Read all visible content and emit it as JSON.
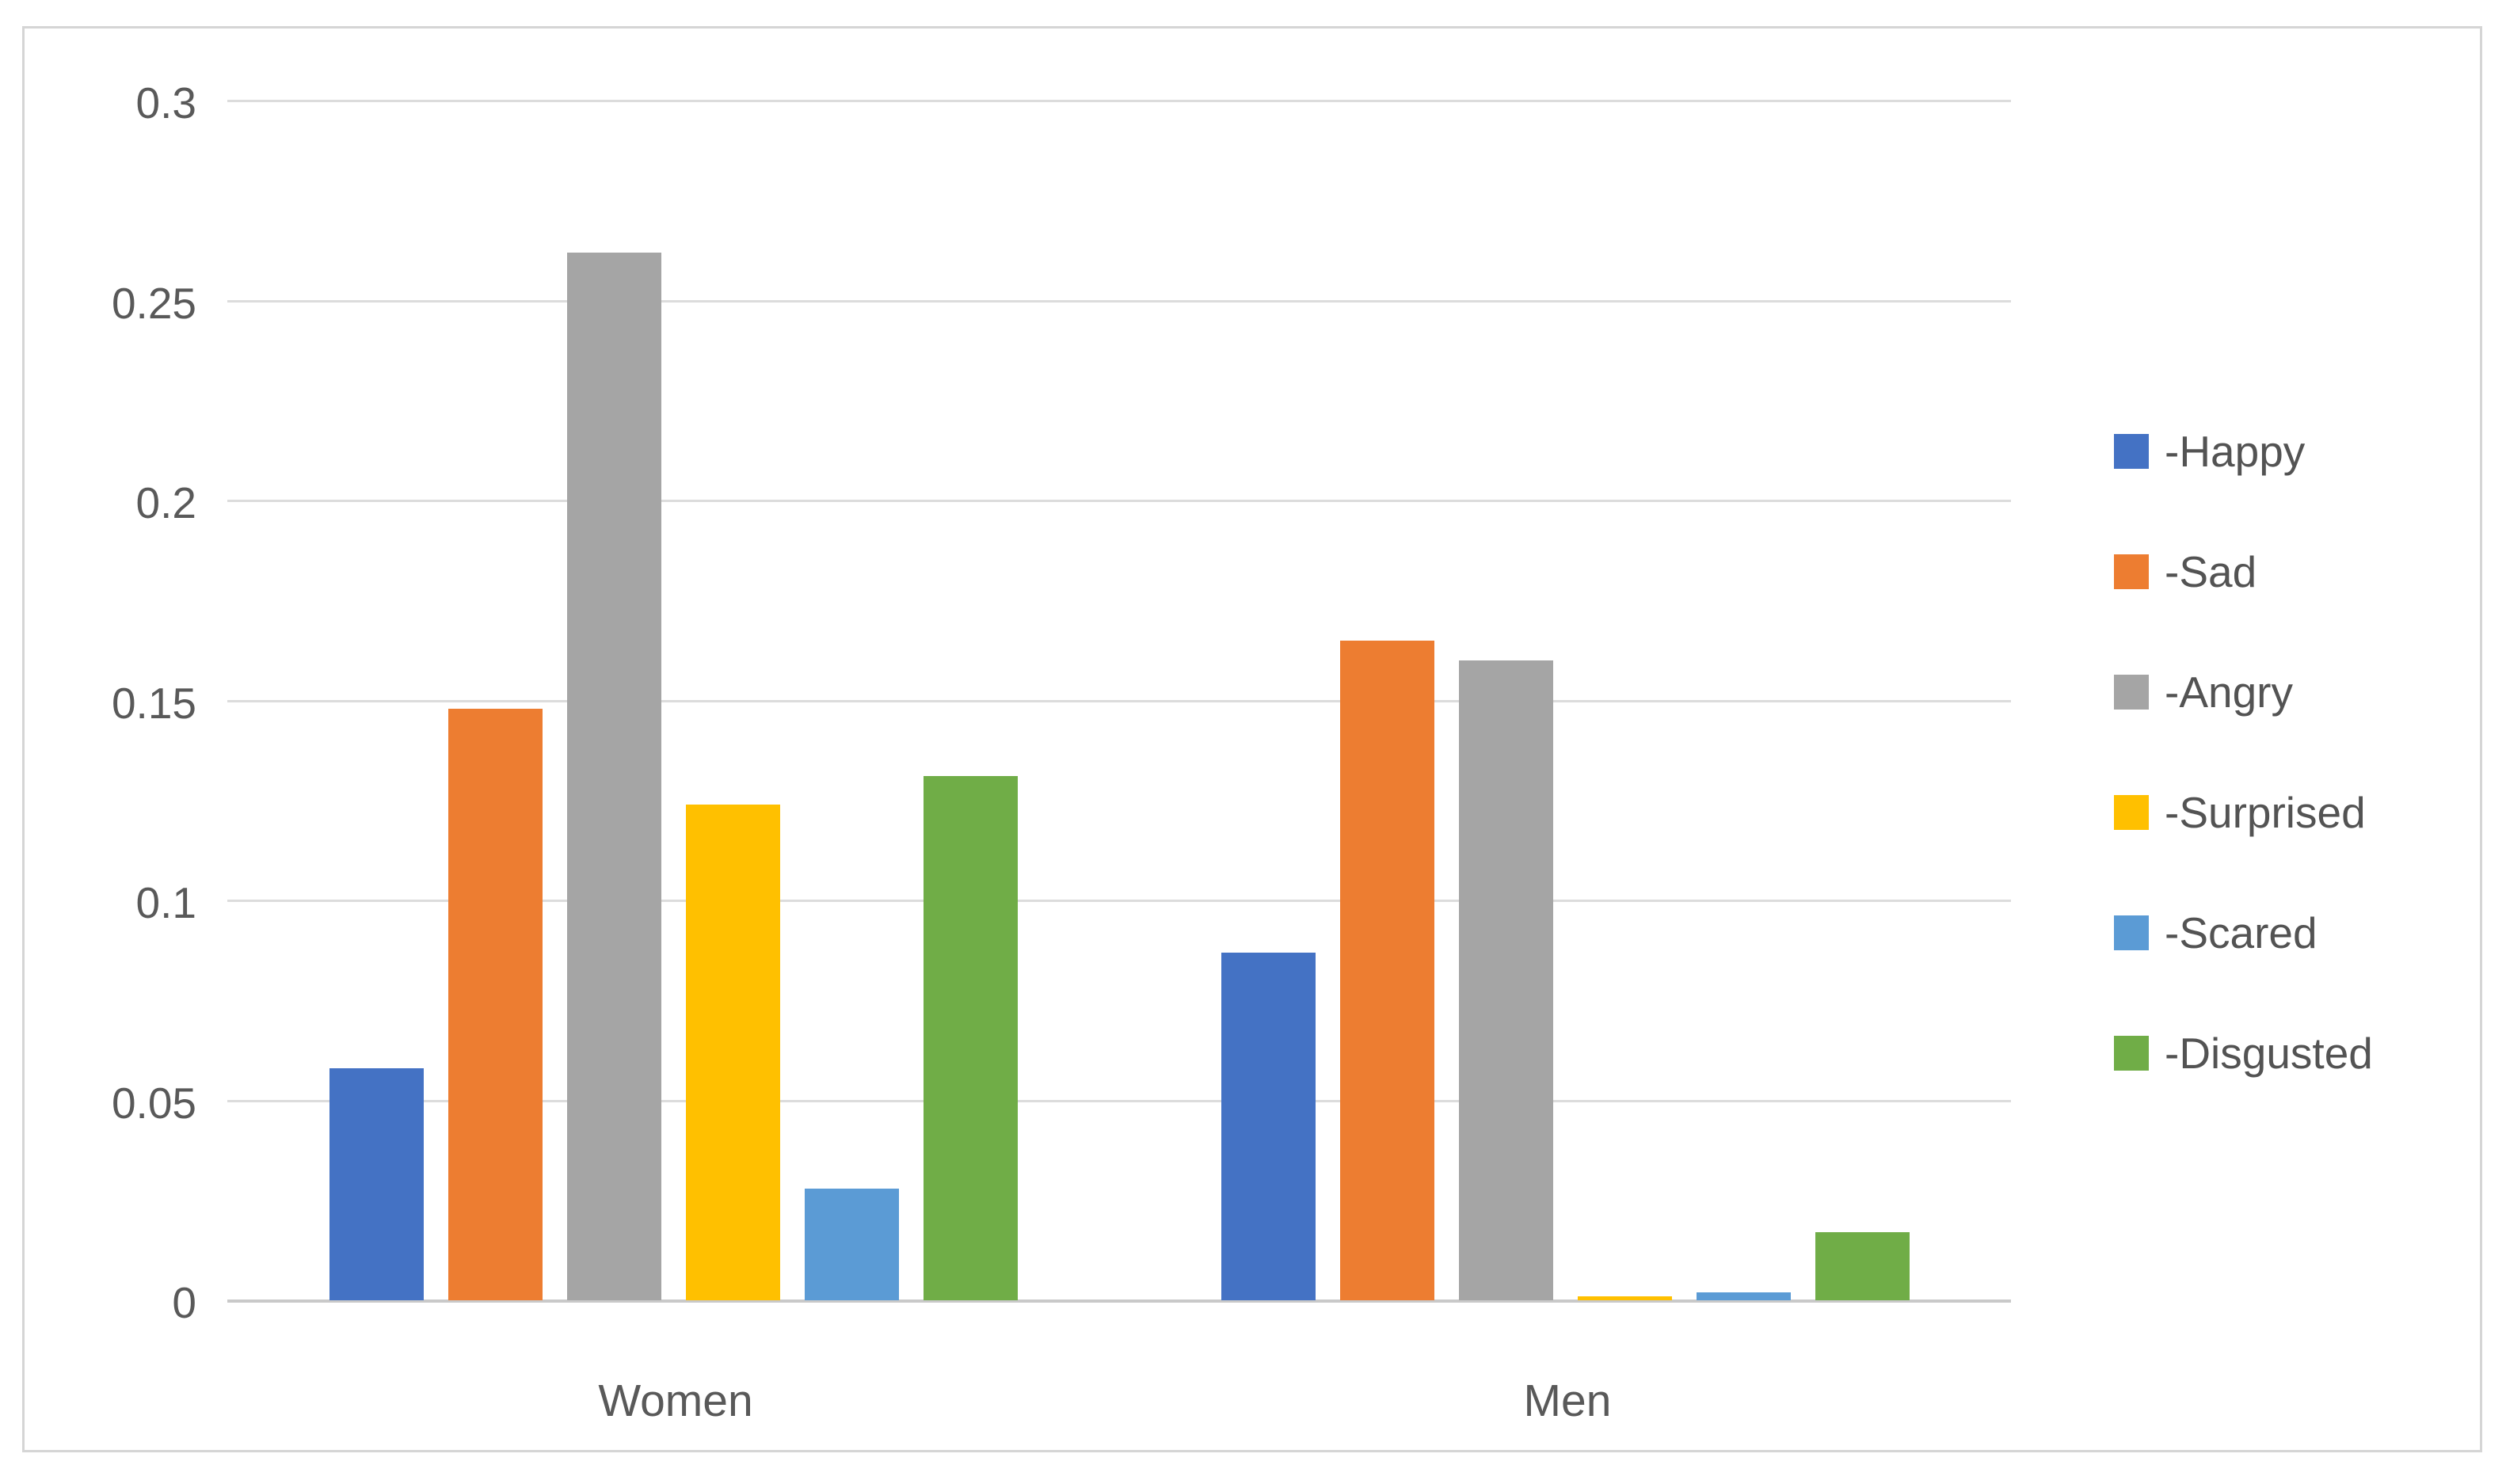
{
  "chart_data": {
    "type": "bar",
    "title": "",
    "xlabel": "",
    "ylabel": "",
    "categories": [
      "Women",
      "Men"
    ],
    "series": [
      {
        "name": "Happy",
        "legend_label": "-Happy",
        "color": "#4472C4",
        "values": [
          0.058,
          0.087
        ]
      },
      {
        "name": "Sad",
        "legend_label": "-Sad",
        "color": "#ED7D31",
        "values": [
          0.148,
          0.165
        ]
      },
      {
        "name": "Angry",
        "legend_label": "-Angry",
        "color": "#A5A5A5",
        "values": [
          0.262,
          0.16
        ]
      },
      {
        "name": "Surprised",
        "legend_label": "-Surprised",
        "color": "#FFC000",
        "values": [
          0.124,
          0.001
        ]
      },
      {
        "name": "Scared",
        "legend_label": "-Scared",
        "color": "#5B9BD5",
        "values": [
          0.028,
          0.002
        ]
      },
      {
        "name": "Disgusted",
        "legend_label": "-Disgusted",
        "color": "#70AD47",
        "values": [
          0.131,
          0.017
        ]
      }
    ],
    "y_axis": {
      "ticks": [
        {
          "label": "0.3",
          "value": 0.3
        },
        {
          "label": "0.25",
          "value": 0.25
        },
        {
          "label": "0.2",
          "value": 0.2
        },
        {
          "label": "0.15",
          "value": 0.15
        },
        {
          "label": "0.1",
          "value": 0.1
        },
        {
          "label": "0.05",
          "value": 0.05
        },
        {
          "label": "0",
          "value": 0.0
        }
      ]
    },
    "ylim": [
      0,
      0.3
    ],
    "grid": true,
    "legend_position": "right"
  },
  "style": {
    "gridline_color": "#dcdcdc",
    "axis_line_color": "#c9c9c9",
    "text_color": "#595959",
    "frame_border_color": "#d5d5d5",
    "background_color": "#ffffff"
  }
}
